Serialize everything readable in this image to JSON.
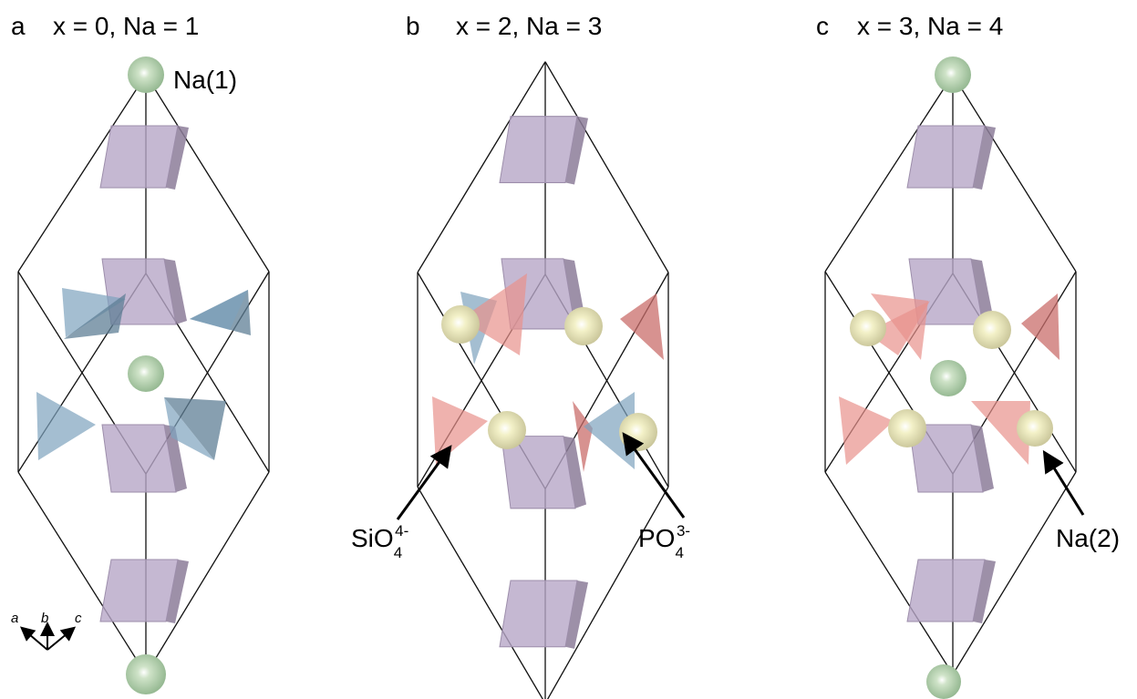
{
  "panels": [
    {
      "letter": "a",
      "title": "x = 0, Na = 1",
      "site_label": "Na(1)"
    },
    {
      "letter": "b",
      "title": "x = 2, Na = 3",
      "labels": [
        {
          "formula": "SiO",
          "subscript": "4",
          "charge": "4-"
        },
        {
          "formula": "PO",
          "subscript": "4",
          "charge": "3-"
        }
      ]
    },
    {
      "letter": "c",
      "title": "x = 3, Na = 4",
      "site_label": "Na(2)"
    }
  ],
  "axes": [
    "a",
    "b",
    "c"
  ]
}
